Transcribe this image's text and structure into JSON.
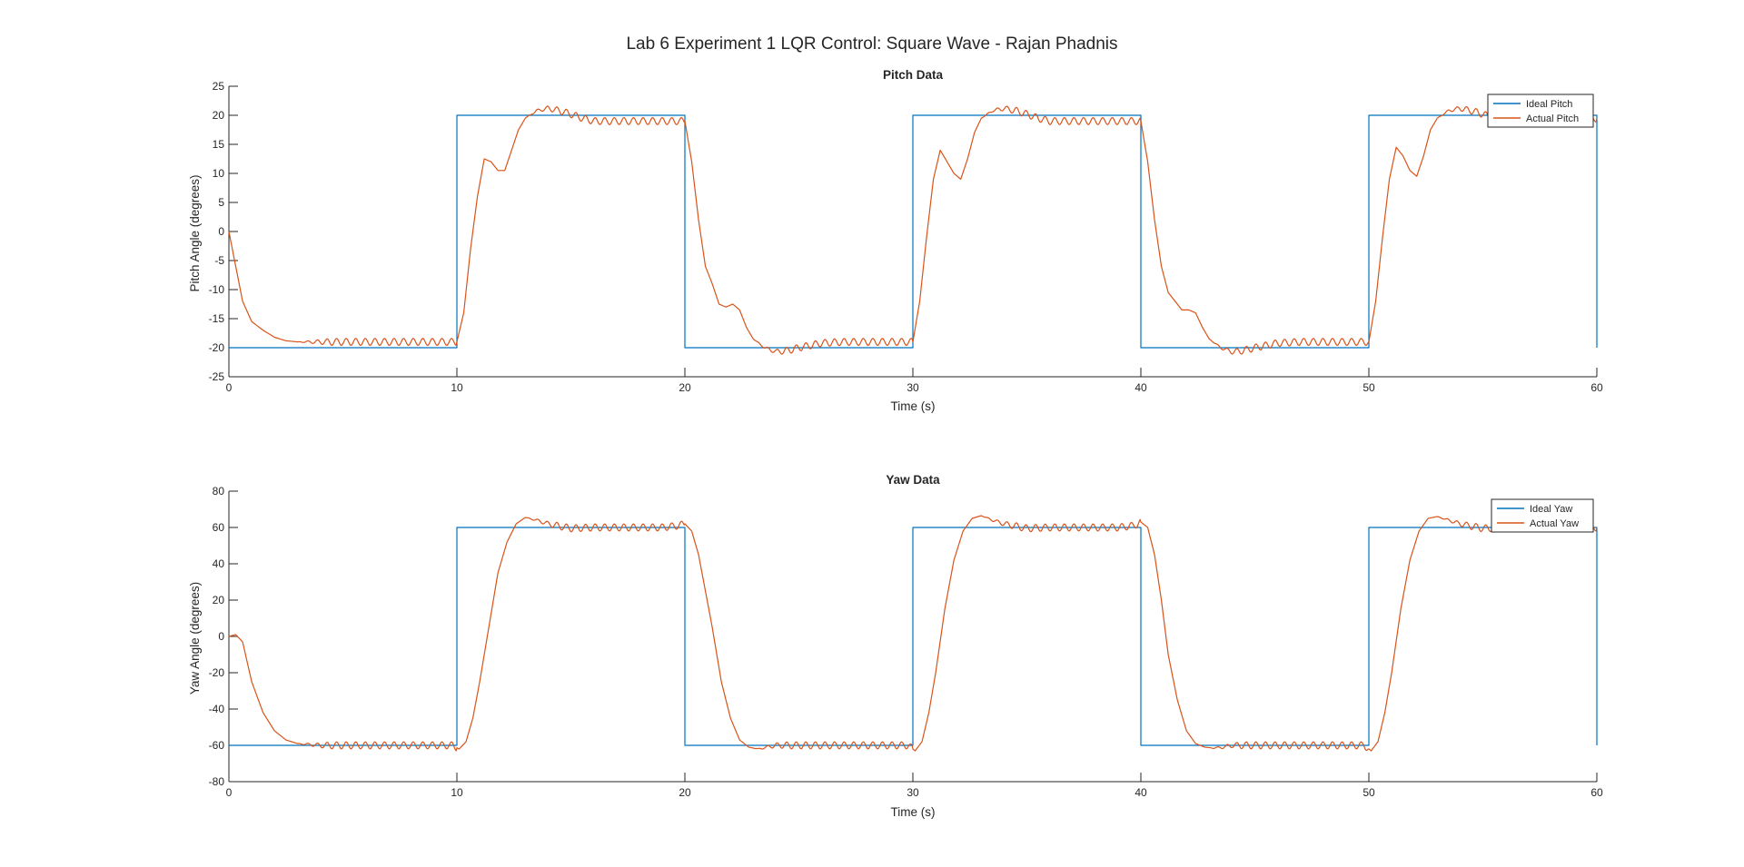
{
  "figure": {
    "suptitle": "Lab 6 Experiment 1 LQR Control: Square Wave - Rajan Phadnis"
  },
  "chart_data": [
    {
      "type": "line",
      "title": "Pitch Data",
      "xlabel": "Time (s)",
      "ylabel": "Pitch Angle (degrees)",
      "xlim": [
        0,
        60
      ],
      "ylim": [
        -25,
        25
      ],
      "xticks": [
        0,
        10,
        20,
        30,
        40,
        50,
        60
      ],
      "yticks": [
        -25,
        -20,
        -15,
        -10,
        -5,
        0,
        5,
        10,
        15,
        20,
        25
      ],
      "grid": false,
      "legend_position": "top-right",
      "square_wave": {
        "amplitude": 20,
        "period": 20,
        "first_level": -20,
        "end_level": -20
      },
      "series": [
        {
          "name": "Ideal Pitch",
          "color": "#0072BD",
          "x": [
            0,
            10,
            10,
            20,
            20,
            30,
            30,
            40,
            40,
            50,
            50,
            60,
            60
          ],
          "y": [
            -20,
            -20,
            20,
            20,
            -20,
            -20,
            20,
            20,
            -20,
            -20,
            20,
            20,
            -20
          ]
        },
        {
          "name": "Actual Pitch",
          "color": "#D95319",
          "x": [
            0,
            0.3,
            0.6,
            1.0,
            1.5,
            2.0,
            2.5,
            3.0,
            4.0,
            5.0,
            6.0,
            7.0,
            8.0,
            9.0,
            10.0,
            10.3,
            10.6,
            10.9,
            11.2,
            11.5,
            11.8,
            12.1,
            12.4,
            12.7,
            13.0,
            13.5,
            14.0,
            14.5,
            15.0,
            15.5,
            16.0,
            17.0,
            18.0,
            19.0,
            20.0,
            20.3,
            20.6,
            20.9,
            21.2,
            21.5,
            21.8,
            22.1,
            22.4,
            22.7,
            23.0,
            23.5,
            24.0,
            24.5,
            25.0,
            26.0,
            27.0,
            28.0,
            29.0,
            30.0,
            30.3,
            30.6,
            30.9,
            31.2,
            31.5,
            31.8,
            32.1,
            32.4,
            32.7,
            33.0,
            33.5,
            34.0,
            34.5,
            35.0,
            35.5,
            36.0,
            37.0,
            38.0,
            39.0,
            40.0,
            40.3,
            40.6,
            40.9,
            41.2,
            41.5,
            41.8,
            42.1,
            42.4,
            42.7,
            43.0,
            43.5,
            44.0,
            44.5,
            45.0,
            46.0,
            47.0,
            48.0,
            49.0,
            50.0,
            50.3,
            50.6,
            50.9,
            51.2,
            51.5,
            51.8,
            52.1,
            52.4,
            52.7,
            53.0,
            53.5,
            54.0,
            54.5,
            55.0,
            55.5,
            56.0,
            57.0,
            58.0,
            59.0,
            60.0
          ],
          "y": [
            0,
            -6,
            -12,
            -15.5,
            -17,
            -18.2,
            -18.8,
            -19.0,
            -19.0,
            -19.0,
            -19.0,
            -19.0,
            -19.0,
            -19.0,
            -19.0,
            -14,
            -3,
            6,
            12.5,
            12,
            10.5,
            10.5,
            14,
            17.5,
            19.5,
            20.8,
            21.2,
            20.8,
            20.2,
            19.5,
            19.0,
            19.0,
            19.0,
            19.0,
            19.0,
            12,
            2,
            -6,
            -9,
            -12.5,
            -13,
            -12.5,
            -13.5,
            -16.5,
            -18.5,
            -20,
            -20.7,
            -20.5,
            -20,
            -19.2,
            -19.0,
            -19.0,
            -19.0,
            -19.0,
            -12,
            -1,
            9,
            14,
            12,
            10,
            9,
            12.5,
            17,
            19.5,
            20.8,
            21.2,
            20.8,
            20.2,
            19.5,
            19.0,
            19.0,
            19.0,
            19.0,
            19.0,
            12,
            2,
            -6,
            -10.5,
            -12,
            -13.5,
            -13.5,
            -14,
            -16.5,
            -18.5,
            -20,
            -20.7,
            -20.5,
            -20,
            -19.2,
            -19.0,
            -19.0,
            -19.0,
            -19.0,
            -12,
            -1,
            9,
            14.5,
            13,
            10.5,
            9.5,
            13,
            17.5,
            19.5,
            20.8,
            21.2,
            20.8,
            20.2,
            19.5,
            19.0,
            19.0,
            19.0,
            19.0,
            19.5
          ]
        }
      ]
    },
    {
      "type": "line",
      "title": "Yaw Data",
      "xlabel": "Time (s)",
      "ylabel": "Yaw Angle (degrees)",
      "xlim": [
        0,
        60
      ],
      "ylim": [
        -80,
        80
      ],
      "xticks": [
        0,
        10,
        20,
        30,
        40,
        50,
        60
      ],
      "yticks": [
        -80,
        -60,
        -40,
        -20,
        0,
        20,
        40,
        60,
        80
      ],
      "grid": false,
      "legend_position": "top-right",
      "square_wave": {
        "amplitude": 60,
        "period": 20,
        "first_level": -60,
        "end_level": -60
      },
      "series": [
        {
          "name": "Ideal Yaw",
          "color": "#0072BD",
          "x": [
            0,
            10,
            10,
            20,
            20,
            30,
            30,
            40,
            40,
            50,
            50,
            60,
            60
          ],
          "y": [
            -60,
            -60,
            60,
            60,
            -60,
            -60,
            60,
            60,
            -60,
            -60,
            60,
            60,
            -60
          ]
        },
        {
          "name": "Actual Yaw",
          "color": "#D95319",
          "x": [
            0,
            0.3,
            0.6,
            1.0,
            1.5,
            2.0,
            2.5,
            3.0,
            4.0,
            5.0,
            6.0,
            7.0,
            8.0,
            9.0,
            9.8,
            10.1,
            10.4,
            10.7,
            11.0,
            11.4,
            11.8,
            12.2,
            12.6,
            13.0,
            13.5,
            14.0,
            15.0,
            16.0,
            17.0,
            18.0,
            19.0,
            19.7,
            20.0,
            20.3,
            20.6,
            20.9,
            21.2,
            21.6,
            22.0,
            22.4,
            22.8,
            23.2,
            23.6,
            24.0,
            25.0,
            26.0,
            27.0,
            28.0,
            29.0,
            29.8,
            30.1,
            30.4,
            30.7,
            31.0,
            31.4,
            31.8,
            32.2,
            32.6,
            33.0,
            33.5,
            34.0,
            35.0,
            36.0,
            37.0,
            38.0,
            39.0,
            39.7,
            40.0,
            40.3,
            40.6,
            40.9,
            41.2,
            41.6,
            42.0,
            42.4,
            42.8,
            43.2,
            43.6,
            44.0,
            45.0,
            46.0,
            47.0,
            48.0,
            49.0,
            49.8,
            50.1,
            50.4,
            50.7,
            51.0,
            51.4,
            51.8,
            52.2,
            52.6,
            53.0,
            53.5,
            54.0,
            55.0,
            56.0,
            57.0,
            58.0,
            59.0,
            60.0
          ],
          "y": [
            0,
            1,
            -3,
            -25,
            -42,
            -52,
            -57,
            -59,
            -60,
            -60,
            -60,
            -60,
            -60,
            -60,
            -60,
            -62,
            -58,
            -45,
            -25,
            5,
            35,
            52,
            62,
            65.5,
            64,
            62,
            59.5,
            60,
            60,
            60,
            60,
            61,
            62,
            58,
            45,
            25,
            5,
            -25,
            -45,
            -57,
            -61,
            -62,
            -61,
            -60,
            -60,
            -60,
            -60,
            -60,
            -60,
            -60,
            -63,
            -58,
            -42,
            -20,
            15,
            42,
            58,
            65,
            66.5,
            64,
            62,
            59.5,
            60,
            60,
            60,
            60,
            61,
            63,
            60,
            45,
            20,
            -10,
            -35,
            -52,
            -59,
            -61,
            -61.5,
            -61,
            -60,
            -60,
            -60,
            -60,
            -60,
            -60,
            -60,
            -63,
            -58,
            -42,
            -20,
            15,
            42,
            58,
            65,
            66,
            64,
            62,
            59.5,
            60,
            60,
            60,
            60,
            60
          ]
        }
      ]
    }
  ]
}
